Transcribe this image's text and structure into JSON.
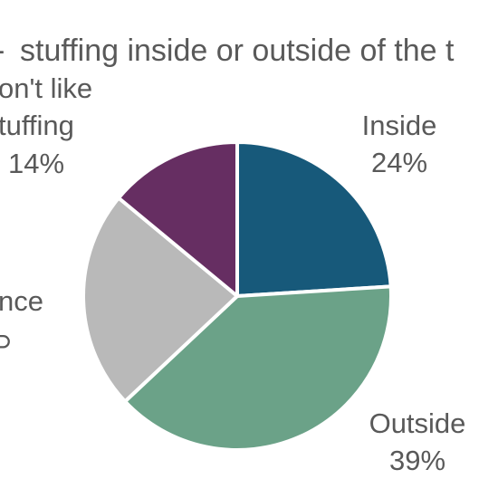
{
  "chart_data": {
    "type": "pie",
    "title": "stuffing inside or outside of the t",
    "title_prefix_fragment": "-",
    "slices": [
      {
        "label": "Inside",
        "label_lines": [
          "Inside"
        ],
        "value_label": "24%",
        "value": 24,
        "color": "#17597a"
      },
      {
        "label": "Outside",
        "label_lines": [
          "Outside"
        ],
        "value_label": "39%",
        "value": 39,
        "color": "#6ba288"
      },
      {
        "label": "nce",
        "label_lines": [
          "nce"
        ],
        "value_label": "",
        "value": 23,
        "color": "#b9b9b9"
      },
      {
        "label": "on't like stuffing",
        "label_lines": [
          "on't like",
          "tuffing"
        ],
        "value_label": "14%",
        "value": 14,
        "color": "#662e62"
      }
    ],
    "start_angle_deg": 0,
    "direction": "clockwise",
    "slice_border_color": "#ffffff"
  }
}
